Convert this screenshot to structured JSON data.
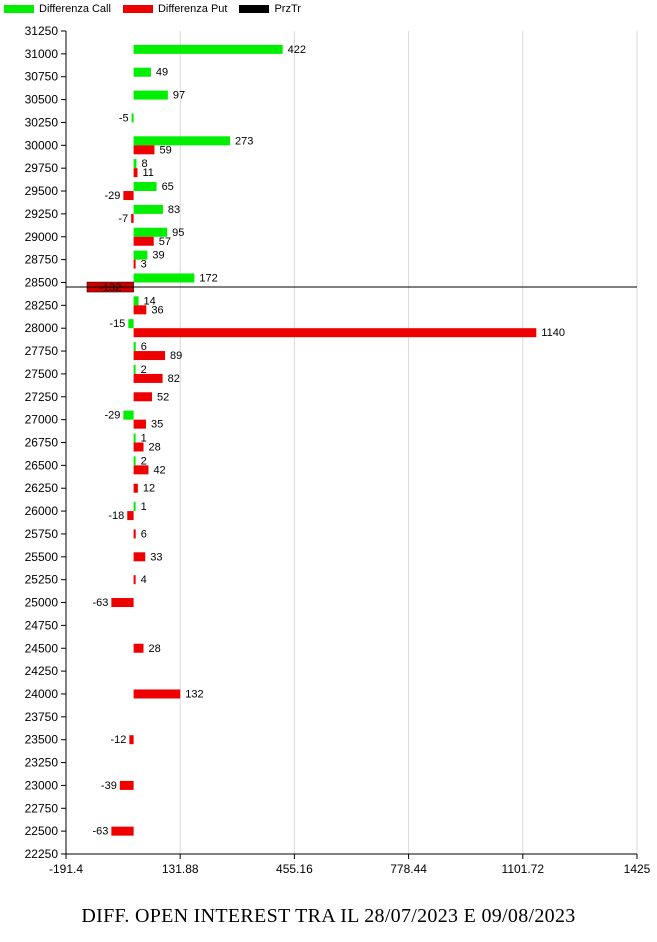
{
  "legend": [
    {
      "label": "Differenza Call",
      "color": "#00ee00"
    },
    {
      "label": "Differenza Put",
      "color": "#ee0000"
    },
    {
      "label": "PrzTr",
      "color": "#000000"
    }
  ],
  "footer_title": "DIFF. OPEN INTEREST TRA IL 28/07/2023 E 09/08/2023",
  "chart_data": {
    "type": "bar",
    "orientation": "horizontal",
    "title": "DIFF. OPEN INTEREST TRA IL 28/07/2023 E 09/08/2023",
    "xlim": [
      -191.4,
      1425
    ],
    "x_ticks": [
      "-191.4",
      "131.88",
      "455.16",
      "778.44",
      "1101.72",
      "1425"
    ],
    "ylim": [
      22250,
      31250
    ],
    "y_ticks": [
      31250,
      31000,
      30750,
      30500,
      30250,
      30000,
      29750,
      29500,
      29250,
      29000,
      28750,
      28500,
      28250,
      28000,
      27750,
      27500,
      27250,
      27000,
      26750,
      26500,
      26250,
      26000,
      25750,
      25500,
      25250,
      25000,
      24750,
      24500,
      24250,
      24000,
      23750,
      23500,
      23250,
      23000,
      22750,
      22500,
      22250
    ],
    "grid": "vertical",
    "legend_position": "top-left",
    "price_line": {
      "name": "PrzTr",
      "strike": 28450,
      "color": "#000000"
    },
    "put_bar_at_price_line": {
      "value": -132,
      "color": "#cc0000"
    },
    "series": [
      {
        "name": "Differenza Call",
        "color": "#00ee00",
        "points": [
          {
            "strike": 31000,
            "value": 422
          },
          {
            "strike": 30750,
            "value": 49
          },
          {
            "strike": 30500,
            "value": 97
          },
          {
            "strike": 30250,
            "value": -5
          },
          {
            "strike": 30000,
            "value": 273
          },
          {
            "strike": 29750,
            "value": 8
          },
          {
            "strike": 29500,
            "value": 65
          },
          {
            "strike": 29250,
            "value": 83
          },
          {
            "strike": 29000,
            "value": 95
          },
          {
            "strike": 28750,
            "value": 39
          },
          {
            "strike": 28500,
            "value": 172
          },
          {
            "strike": 28250,
            "value": 14
          },
          {
            "strike": 28000,
            "value": -15
          },
          {
            "strike": 27750,
            "value": 6
          },
          {
            "strike": 27500,
            "value": 2
          },
          {
            "strike": 27000,
            "value": -29
          },
          {
            "strike": 26750,
            "value": 1
          },
          {
            "strike": 26500,
            "value": 2
          },
          {
            "strike": 26000,
            "value": 1
          }
        ]
      },
      {
        "name": "Differenza Put",
        "color": "#ee0000",
        "points": [
          {
            "strike": 30000,
            "value": 59
          },
          {
            "strike": 29750,
            "value": 11
          },
          {
            "strike": 29500,
            "value": -29
          },
          {
            "strike": 29250,
            "value": -7
          },
          {
            "strike": 29000,
            "value": 57
          },
          {
            "strike": 28750,
            "value": 3
          },
          {
            "strike": 28250,
            "value": 36
          },
          {
            "strike": 28000,
            "value": 1140
          },
          {
            "strike": 27750,
            "value": 89
          },
          {
            "strike": 27500,
            "value": 82
          },
          {
            "strike": 27250,
            "value": 52
          },
          {
            "strike": 27000,
            "value": 35
          },
          {
            "strike": 26750,
            "value": 28
          },
          {
            "strike": 26500,
            "value": 42
          },
          {
            "strike": 26250,
            "value": 12
          },
          {
            "strike": 26000,
            "value": -18
          },
          {
            "strike": 25750,
            "value": 6
          },
          {
            "strike": 25500,
            "value": 33
          },
          {
            "strike": 25250,
            "value": 4
          },
          {
            "strike": 25000,
            "value": -63
          },
          {
            "strike": 24500,
            "value": 28
          },
          {
            "strike": 24000,
            "value": 132
          },
          {
            "strike": 23500,
            "value": -12
          },
          {
            "strike": 23000,
            "value": -39
          },
          {
            "strike": 22500,
            "value": -63
          }
        ]
      }
    ]
  }
}
